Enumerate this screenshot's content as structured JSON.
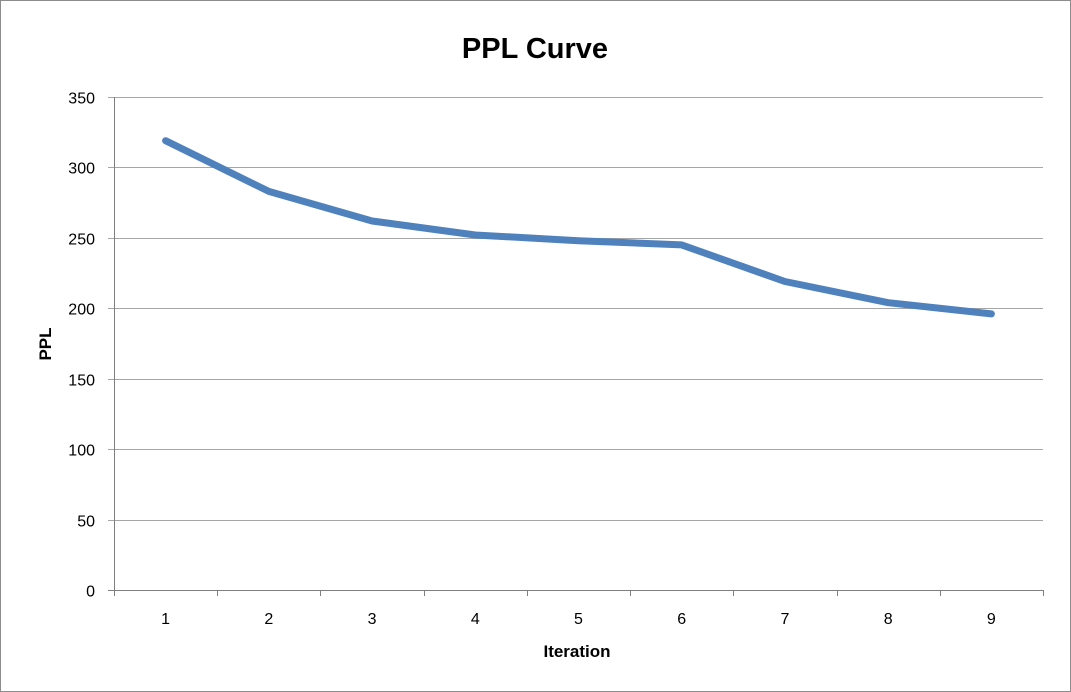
{
  "chart_data": {
    "type": "line",
    "title": "PPL Curve",
    "xlabel": "Iteration",
    "ylabel": "PPL",
    "categories": [
      "1",
      "2",
      "3",
      "4",
      "5",
      "6",
      "7",
      "8",
      "9"
    ],
    "series": [
      {
        "values": [
          319,
          283,
          262,
          252,
          248,
          245,
          219,
          204,
          196
        ]
      }
    ],
    "ylim": [
      0,
      350
    ],
    "yticks": [
      "0",
      "50",
      "100",
      "150",
      "200",
      "250",
      "300",
      "350"
    ],
    "grid": true,
    "legend": "none",
    "colors": {
      "series": "#4f81bd"
    }
  }
}
